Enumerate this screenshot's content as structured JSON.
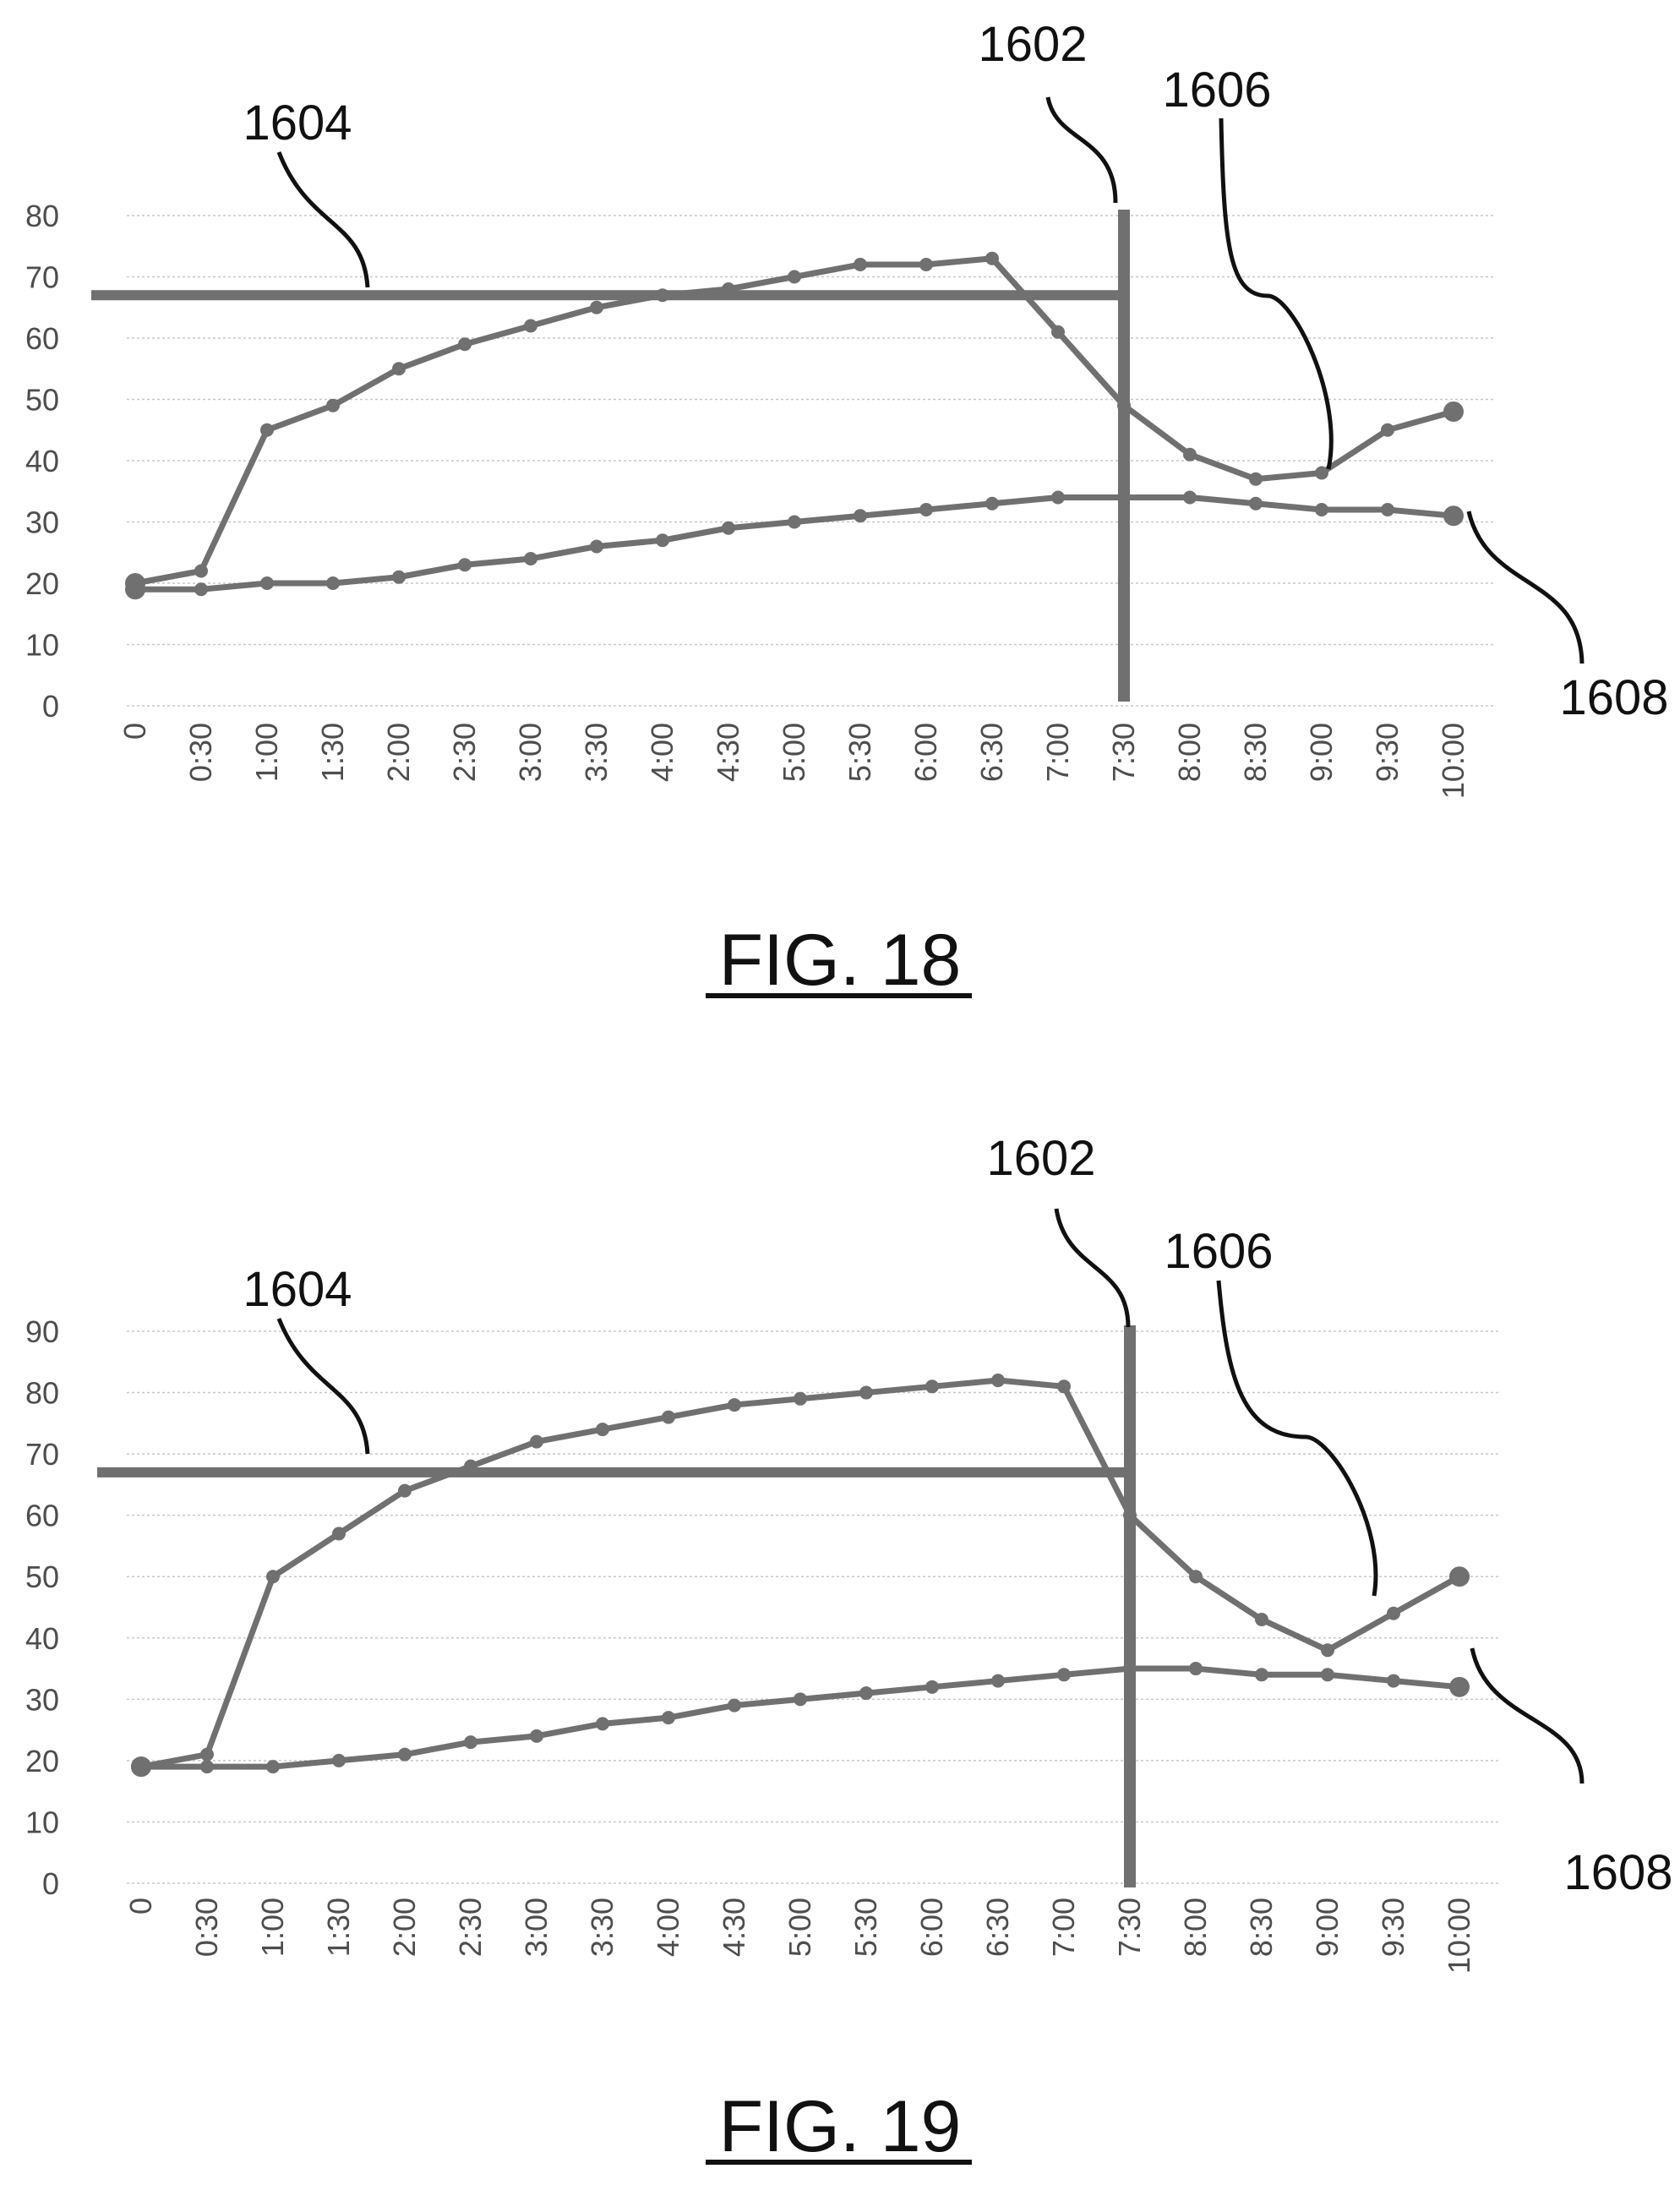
{
  "colors": {
    "series": "#707070",
    "grid": "#c8c8c8",
    "text": "#111111"
  },
  "chart_data": [
    {
      "type": "line",
      "figure_label": "FIG. 18",
      "categories": [
        "0",
        "0:30",
        "1:00",
        "1:30",
        "2:00",
        "2:30",
        "3:00",
        "3:30",
        "4:00",
        "4:30",
        "5:00",
        "5:30",
        "6:00",
        "6:30",
        "7:00",
        "7:30",
        "8:00",
        "8:30",
        "9:00",
        "9:30",
        "10:00"
      ],
      "y_ticks": [
        "0",
        "10",
        "20",
        "30",
        "40",
        "50",
        "60",
        "70",
        "80"
      ],
      "ylim": [
        0,
        80
      ],
      "grid": true,
      "series": [
        {
          "values": [
            20,
            22,
            45,
            49,
            55,
            59,
            62,
            65,
            67,
            68,
            70,
            72,
            72,
            73,
            61,
            49,
            41,
            37,
            38,
            45,
            48
          ]
        },
        {
          "values": [
            19,
            19,
            20,
            20,
            21,
            23,
            24,
            26,
            27,
            29,
            30,
            31,
            32,
            33,
            34,
            34,
            34,
            33,
            32,
            32,
            31
          ]
        }
      ],
      "threshold_y": 67,
      "marker_category": "7:30",
      "callouts": {
        "vertical_line": "1602",
        "threshold_line": "1604",
        "upper_curve": "1606",
        "lower_curve": "1608"
      }
    },
    {
      "type": "line",
      "figure_label": "FIG. 19",
      "categories": [
        "0",
        "0:30",
        "1:00",
        "1:30",
        "2:00",
        "2:30",
        "3:00",
        "3:30",
        "4:00",
        "4:30",
        "5:00",
        "5:30",
        "6:00",
        "6:30",
        "7:00",
        "7:30",
        "8:00",
        "8:30",
        "9:00",
        "9:30",
        "10:00"
      ],
      "y_ticks": [
        "0",
        "10",
        "20",
        "30",
        "40",
        "50",
        "60",
        "70",
        "80",
        "90"
      ],
      "ylim": [
        0,
        90
      ],
      "grid": true,
      "series": [
        {
          "values": [
            19,
            21,
            50,
            57,
            64,
            68,
            72,
            74,
            76,
            78,
            79,
            80,
            81,
            82,
            81,
            60,
            50,
            43,
            38,
            44,
            50
          ]
        },
        {
          "values": [
            19,
            19,
            19,
            20,
            21,
            23,
            24,
            26,
            27,
            29,
            30,
            31,
            32,
            33,
            34,
            35,
            35,
            34,
            34,
            33,
            32
          ]
        }
      ],
      "threshold_y": 67,
      "marker_category": "7:30",
      "callouts": {
        "vertical_line": "1602",
        "threshold_line": "1604",
        "upper_curve": "1606",
        "lower_curve": "1608"
      }
    }
  ]
}
